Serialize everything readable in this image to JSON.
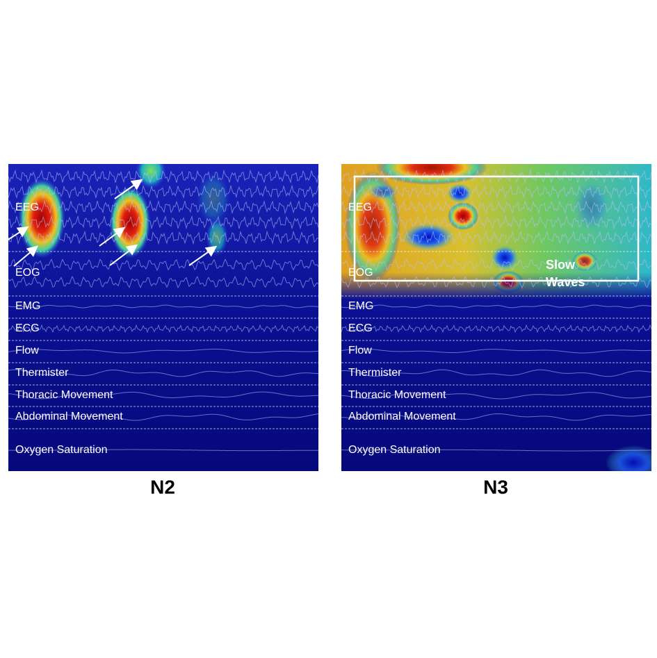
{
  "panels": [
    {
      "title": "N2",
      "channels": [
        "EEG",
        "EOG",
        "EMG",
        "ECG",
        "Flow",
        "Thermister",
        "Thoracic Movement",
        "Abdominal Movement",
        "Oxygen Saturation"
      ]
    },
    {
      "title": "N3",
      "channels": [
        "EEG",
        "EOG",
        "EMG",
        "ECG",
        "Flow",
        "Thermister",
        "Thoracic Movement",
        "Abdominal Movement",
        "Oxygen Saturation"
      ],
      "annotation": [
        "Slow",
        "Waves"
      ]
    }
  ]
}
